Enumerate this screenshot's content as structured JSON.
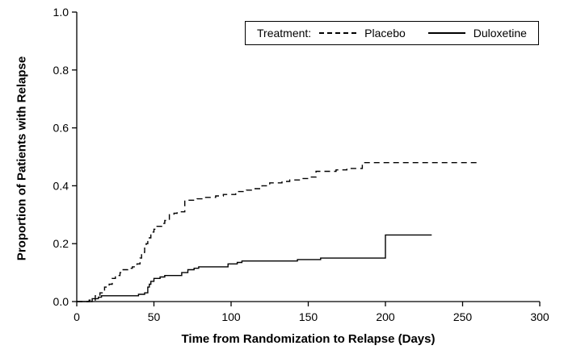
{
  "chart_data": {
    "type": "line",
    "subtype": "step-kaplan-meier",
    "title": "",
    "xlabel": "Time from Randomization to Relapse (Days)",
    "ylabel": "Proportion of Patients with Relapse",
    "xlim": [
      0,
      300
    ],
    "ylim": [
      0.0,
      1.0
    ],
    "grid": false,
    "xticks": [
      0,
      50,
      100,
      150,
      200,
      250,
      300
    ],
    "xtick_labels": [
      "0",
      "50",
      "100",
      "150",
      "200",
      "250",
      "300"
    ],
    "yticks": [
      0.0,
      0.2,
      0.4,
      0.6,
      0.8,
      1.0
    ],
    "ytick_labels": [
      "0.0",
      "0.2",
      "0.4",
      "0.6",
      "0.8",
      "1.0"
    ],
    "legend": {
      "title": "Treatment:",
      "position": "top-inside",
      "entries": [
        {
          "name": "Placebo",
          "line_style": "dashed",
          "color": "#000000"
        },
        {
          "name": "Duloxetine",
          "line_style": "solid",
          "color": "#000000"
        }
      ]
    },
    "series": [
      {
        "name": "Placebo",
        "style": "dashed",
        "color": "#000000",
        "points": [
          [
            0,
            0.0
          ],
          [
            8,
            0.005
          ],
          [
            12,
            0.02
          ],
          [
            15,
            0.03
          ],
          [
            18,
            0.05
          ],
          [
            21,
            0.06
          ],
          [
            23,
            0.08
          ],
          [
            25,
            0.09
          ],
          [
            28,
            0.1
          ],
          [
            30,
            0.11
          ],
          [
            33,
            0.115
          ],
          [
            36,
            0.12
          ],
          [
            39,
            0.13
          ],
          [
            41,
            0.15
          ],
          [
            42,
            0.17
          ],
          [
            44,
            0.19
          ],
          [
            45,
            0.2
          ],
          [
            46,
            0.22
          ],
          [
            48,
            0.24
          ],
          [
            50,
            0.25
          ],
          [
            52,
            0.26
          ],
          [
            55,
            0.27
          ],
          [
            57,
            0.28
          ],
          [
            60,
            0.3
          ],
          [
            63,
            0.305
          ],
          [
            65,
            0.31
          ],
          [
            70,
            0.35
          ],
          [
            78,
            0.355
          ],
          [
            82,
            0.36
          ],
          [
            90,
            0.365
          ],
          [
            95,
            0.37
          ],
          [
            103,
            0.38
          ],
          [
            110,
            0.385
          ],
          [
            115,
            0.39
          ],
          [
            120,
            0.4
          ],
          [
            125,
            0.41
          ],
          [
            133,
            0.415
          ],
          [
            138,
            0.42
          ],
          [
            145,
            0.425
          ],
          [
            150,
            0.43
          ],
          [
            155,
            0.45
          ],
          [
            168,
            0.455
          ],
          [
            175,
            0.46
          ],
          [
            185,
            0.48
          ],
          [
            260,
            0.48
          ]
        ]
      },
      {
        "name": "Duloxetine",
        "style": "solid",
        "color": "#000000",
        "points": [
          [
            0,
            0.0
          ],
          [
            10,
            0.01
          ],
          [
            14,
            0.015
          ],
          [
            16,
            0.02
          ],
          [
            40,
            0.025
          ],
          [
            44,
            0.03
          ],
          [
            46,
            0.05
          ],
          [
            47,
            0.06
          ],
          [
            48,
            0.07
          ],
          [
            50,
            0.08
          ],
          [
            54,
            0.085
          ],
          [
            57,
            0.09
          ],
          [
            68,
            0.1
          ],
          [
            72,
            0.11
          ],
          [
            76,
            0.115
          ],
          [
            79,
            0.12
          ],
          [
            98,
            0.13
          ],
          [
            104,
            0.135
          ],
          [
            107,
            0.14
          ],
          [
            143,
            0.145
          ],
          [
            158,
            0.15
          ],
          [
            200,
            0.23
          ],
          [
            230,
            0.23
          ]
        ]
      }
    ]
  }
}
